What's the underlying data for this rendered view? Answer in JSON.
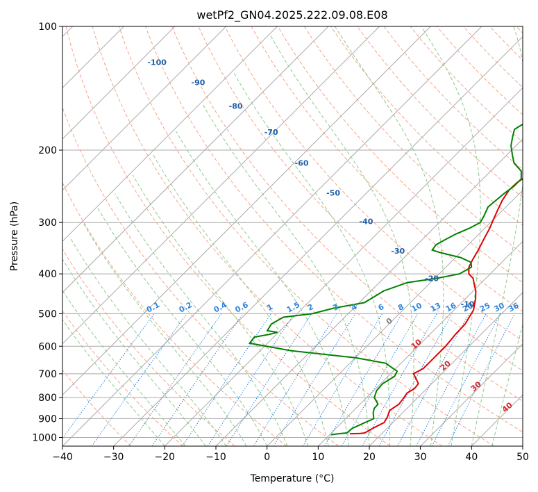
{
  "chart_data": {
    "type": "line",
    "title": "wetPf2_GN04.2025.222.09.08.E08",
    "xlabel": "Temperature (°C)",
    "ylabel": "Pressure (hPa)",
    "xlim": [
      -40,
      50
    ],
    "ylim": [
      1050,
      100
    ],
    "y_scale": "log",
    "grid": true,
    "x_ticks": [
      "−40",
      "−30",
      "−20",
      "−10",
      "0",
      "10",
      "20",
      "30",
      "40",
      "50"
    ],
    "y_ticks": [
      "100",
      "200",
      "300",
      "400",
      "500",
      "600",
      "700",
      "800",
      "900",
      "1000"
    ],
    "series": [
      {
        "color": "#e00000",
        "points": [
          [
            13.8,
            980
          ],
          [
            15.8,
            978
          ],
          [
            16.5,
            975
          ],
          [
            17.2,
            950
          ],
          [
            18.3,
            920
          ],
          [
            17.8,
            890
          ],
          [
            17.0,
            860
          ],
          [
            17.6,
            830
          ],
          [
            17.3,
            800
          ],
          [
            17.0,
            780
          ],
          [
            17.6,
            760
          ],
          [
            17.4,
            740
          ],
          [
            16.0,
            720
          ],
          [
            14.5,
            700
          ],
          [
            15.4,
            680
          ],
          [
            15.4,
            640
          ],
          [
            15.4,
            600
          ],
          [
            15.0,
            560
          ],
          [
            14.9,
            530
          ],
          [
            13.8,
            490
          ],
          [
            12.0,
            460
          ],
          [
            10.5,
            440
          ],
          [
            9.0,
            425
          ],
          [
            7.5,
            410
          ],
          [
            5.8,
            400
          ],
          [
            4.5,
            385
          ],
          [
            3.8,
            370
          ],
          [
            3.0,
            350
          ],
          [
            2.0,
            330
          ],
          [
            1.0,
            310
          ],
          [
            0,
            295
          ],
          [
            -1.0,
            280
          ],
          [
            -2.0,
            265
          ],
          [
            -2.7,
            250
          ],
          [
            -2.6,
            240
          ],
          [
            -1.5,
            225
          ],
          [
            0.5,
            215
          ],
          [
            3.5,
            200
          ],
          [
            8,
            185
          ],
          [
            12,
            175
          ],
          [
            15.5,
            168
          ],
          [
            17.5,
            160
          ],
          [
            18.2,
            150
          ],
          [
            19.0,
            140
          ],
          [
            20.3,
            130
          ],
          [
            22.0,
            120
          ],
          [
            25.0,
            110
          ],
          [
            27.5,
            105
          ],
          [
            30.0,
            100
          ]
        ]
      },
      {
        "color": "#008000",
        "points": [
          [
            10.3,
            985
          ],
          [
            11.5,
            980
          ],
          [
            13.0,
            975
          ],
          [
            13.2,
            950
          ],
          [
            15.5,
            900
          ],
          [
            14.2,
            870
          ],
          [
            13.6,
            850
          ],
          [
            13.5,
            830
          ],
          [
            11.5,
            800
          ],
          [
            10.6,
            770
          ],
          [
            10.4,
            740
          ],
          [
            11.3,
            710
          ],
          [
            10.8,
            690
          ],
          [
            7.0,
            660
          ],
          [
            0,
            640
          ],
          [
            -14,
            615
          ],
          [
            -23.5,
            590
          ],
          [
            -23.8,
            570
          ],
          [
            -21.5,
            562
          ],
          [
            -20.2,
            555
          ],
          [
            -22.5,
            550
          ],
          [
            -23.0,
            530
          ],
          [
            -22,
            510
          ],
          [
            -17,
            500
          ],
          [
            -14,
            485
          ],
          [
            -9.0,
            470
          ],
          [
            -8.5,
            460
          ],
          [
            -7.5,
            440
          ],
          [
            -4.5,
            420
          ],
          [
            0.5,
            410
          ],
          [
            4.0,
            400
          ],
          [
            5.0,
            385
          ],
          [
            4.0,
            375
          ],
          [
            1.0,
            365
          ],
          [
            -4.0,
            355
          ],
          [
            -6.0,
            350
          ],
          [
            -6.3,
            340
          ],
          [
            -5.5,
            330
          ],
          [
            -4.5,
            320
          ],
          [
            -3.0,
            310
          ],
          [
            -2.0,
            300
          ],
          [
            -2.5,
            290
          ],
          [
            -3.5,
            275
          ],
          [
            -3.0,
            255
          ],
          [
            -2.5,
            245
          ],
          [
            -2.5,
            235
          ],
          [
            -4,
            225
          ],
          [
            -7,
            215
          ],
          [
            -9,
            205
          ],
          [
            -11,
            195
          ],
          [
            -12.5,
            185
          ],
          [
            -13.5,
            178
          ],
          [
            -12.5,
            170
          ],
          [
            -10,
            160
          ],
          [
            -7.5,
            150
          ],
          [
            -5,
            140
          ],
          [
            -3,
            130
          ],
          [
            -1.5,
            120
          ],
          [
            0,
            110
          ],
          [
            1.5,
            100
          ]
        ]
      }
    ],
    "dry_adiabat_labels": [
      "-100",
      "-90",
      "-80",
      "-70",
      "-60",
      "-50",
      "-40",
      "-30",
      "-20",
      "-10"
    ],
    "mixing_ratio_labels": [
      "0.1",
      "0.2",
      "0.4",
      "0.6",
      "1",
      "1.5",
      "2",
      "3",
      "4",
      "6",
      "8",
      "10",
      "13",
      "16",
      "20",
      "25",
      "30",
      "36"
    ],
    "moist_adiabat_labels": [
      "0",
      "10",
      "20",
      "30",
      "40"
    ],
    "colors": {
      "temperature": "#e00000",
      "dewpoint": "#008000",
      "isotherm_grid": "#aaaaaa",
      "dry_adiabat": "#f4a58a",
      "moist_adiabat": "#8fc98f",
      "mixing_ratio": "#2e86de",
      "adiabat_label": "#1f5fa8",
      "moist_label": "#d62728",
      "zero_label": "#7f7f7f"
    }
  }
}
